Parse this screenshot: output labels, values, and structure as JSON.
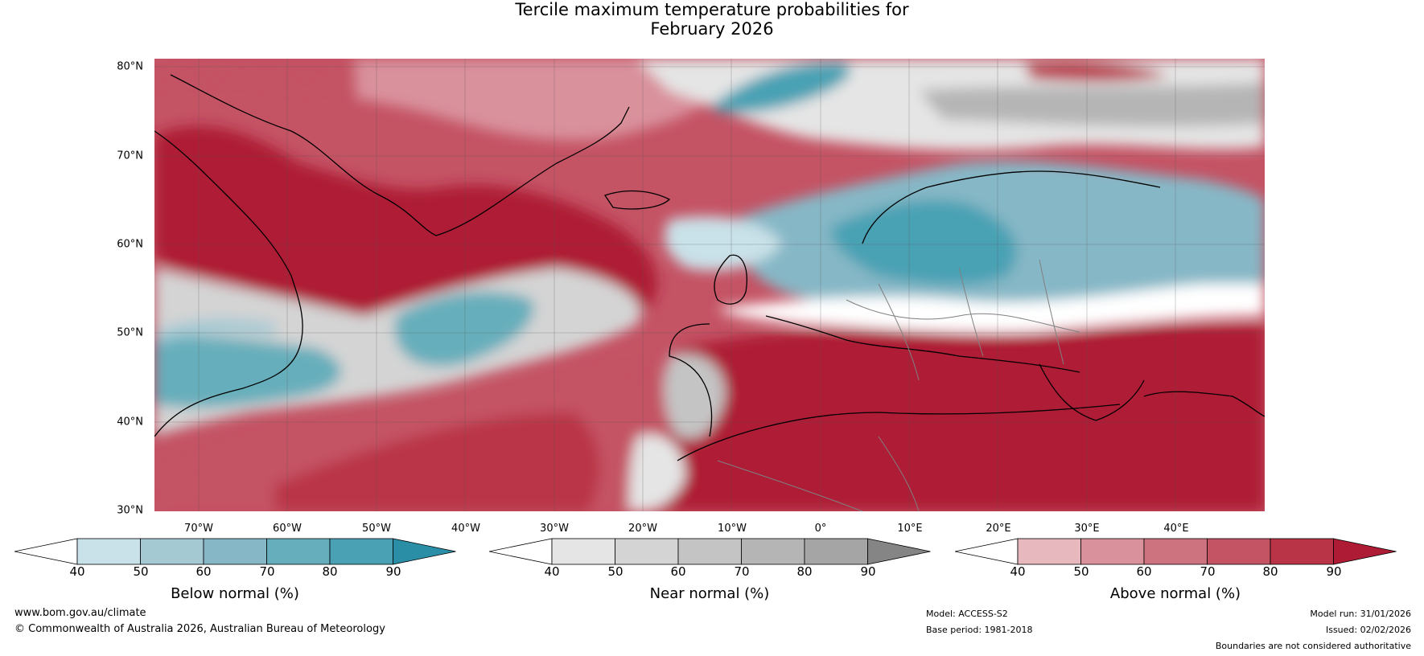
{
  "title": {
    "line1": "Tercile maximum temperature probabilities for",
    "line2": "February 2026"
  },
  "map": {
    "lat_labels": [
      "80°N",
      "70°N",
      "60°N",
      "50°N",
      "40°N",
      "30°N"
    ],
    "lon_labels": [
      "70°W",
      "60°W",
      "50°W",
      "40°W",
      "30°W",
      "20°W",
      "10°W",
      "0°",
      "10°E",
      "20°E",
      "30°E",
      "40°E"
    ]
  },
  "colorbars": [
    {
      "label": "Below normal (%)",
      "ticks": [
        "40",
        "50",
        "60",
        "70",
        "80",
        "90"
      ],
      "colors": [
        "#ffffff",
        "#c9e1e8",
        "#a5c9d3",
        "#86b7c6",
        "#66aebb",
        "#4aa1b4",
        "#2a8fa6"
      ]
    },
    {
      "label": "Near normal (%)",
      "ticks": [
        "40",
        "50",
        "60",
        "70",
        "80",
        "90"
      ],
      "colors": [
        "#ffffff",
        "#e5e5e5",
        "#d4d4d4",
        "#c4c4c4",
        "#b5b5b5",
        "#a5a5a5",
        "#858585"
      ]
    },
    {
      "label": "Above normal (%)",
      "ticks": [
        "40",
        "50",
        "60",
        "70",
        "80",
        "90"
      ],
      "colors": [
        "#ffffff",
        "#e7b9bf",
        "#d9919c",
        "#cd737f",
        "#c45364",
        "#b93446",
        "#ae1b35"
      ]
    }
  ],
  "footer": {
    "website": "www.bom.gov.au/climate",
    "copyright": "© Commonwealth of Australia 2026, Australian Bureau of Meteorology",
    "model": "Model: ACCESS-S2",
    "base_period": "Base period: 1981-2018",
    "model_run": "Model run: 31/01/2026",
    "issued": "Issued: 02/02/2026",
    "disclaimer": "Boundaries are not considered authoritative"
  }
}
